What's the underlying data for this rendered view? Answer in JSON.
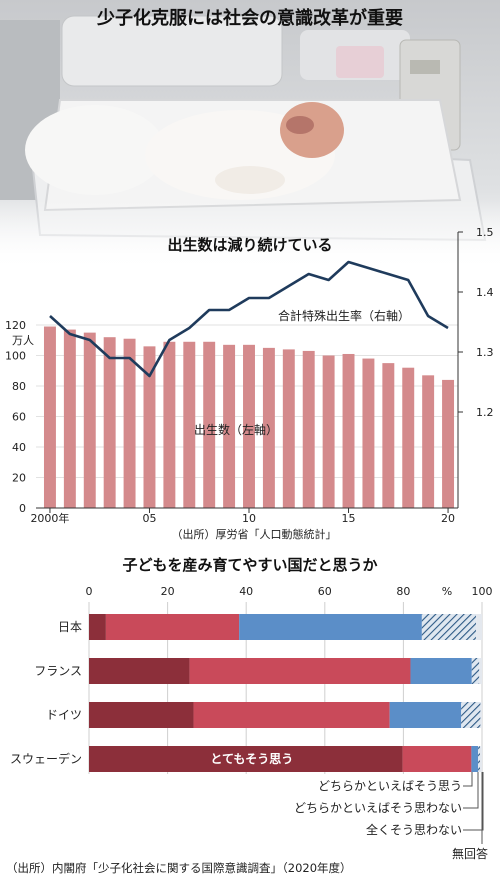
{
  "main_title": "少子化克服には社会の意識改革が重要",
  "chart_data": [
    {
      "type": "bar",
      "title": "出生数は減り続けている",
      "x": [
        "2000年",
        "01",
        "02",
        "03",
        "04",
        "05",
        "06",
        "07",
        "08",
        "09",
        "10",
        "11",
        "12",
        "13",
        "14",
        "15",
        "16",
        "17",
        "18",
        "19",
        "20"
      ],
      "x_tick_labels": [
        "2000年",
        "05",
        "10",
        "15",
        "20"
      ],
      "left_axis": {
        "unit": "万人",
        "ticks": [
          0,
          20,
          40,
          60,
          80,
          100,
          120
        ],
        "ylim": [
          0,
          120
        ]
      },
      "right_axis": {
        "ticks": [
          1.2,
          1.3,
          1.4,
          1.5
        ],
        "ylim": [
          1.0,
          1.5
        ]
      },
      "series": [
        {
          "name": "出生数（左軸）",
          "axis": "left",
          "type": "bar",
          "color": "#d48a8c",
          "values": [
            119,
            117,
            115,
            112,
            111,
            106,
            109,
            109,
            109,
            107,
            107,
            105,
            104,
            103,
            100,
            101,
            98,
            95,
            92,
            87,
            84
          ]
        },
        {
          "name": "合計特殊出生率（右軸）",
          "axis": "right",
          "type": "line",
          "color": "#1f3b5c",
          "values": [
            1.36,
            1.33,
            1.32,
            1.29,
            1.29,
            1.26,
            1.32,
            1.34,
            1.37,
            1.37,
            1.39,
            1.39,
            1.41,
            1.43,
            1.42,
            1.45,
            1.44,
            1.43,
            1.42,
            1.36,
            1.34
          ]
        }
      ],
      "source": "（出所）厚労省「人口動態統計」"
    },
    {
      "type": "bar",
      "orientation": "horizontal",
      "stacked": true,
      "title": "子どもを産み育てやすい国だと思うか",
      "categories": [
        "日本",
        "フランス",
        "ドイツ",
        "スウェーデン"
      ],
      "xlim": [
        0,
        100
      ],
      "x_ticks": [
        0,
        20,
        40,
        60,
        80,
        100
      ],
      "x_unit": "%",
      "series": [
        {
          "name": "とてもそう思う",
          "color": "#8c2f3a",
          "values": [
            4.3,
            25.6,
            26.6,
            79.8
          ]
        },
        {
          "name": "どちらかといえばそう思う",
          "color": "#c94a5a",
          "values": [
            33.9,
            56.2,
            49.9,
            17.5
          ]
        },
        {
          "name": "どちらかといえばそう思わない",
          "color": "#5b8ec8",
          "values": [
            46.5,
            15.6,
            18.2,
            1.7
          ]
        },
        {
          "name": "全くそう思わない",
          "color": "#2e5a86",
          "values": [
            13.8,
            1.9,
            4.9,
            0.5
          ],
          "pattern": "hatched"
        },
        {
          "name": "無回答",
          "color": "#e4e8ee",
          "values": [
            1.5,
            0.7,
            0.4,
            0.5
          ]
        }
      ],
      "source": "（出所）内閣府「少子化社会に関する国際意識調査」（2020年度）"
    }
  ]
}
